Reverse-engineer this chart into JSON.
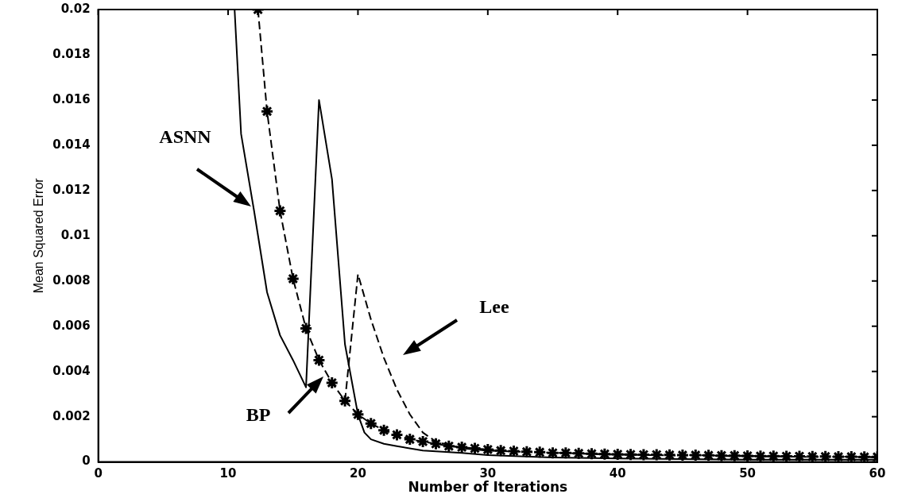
{
  "chart_data": {
    "type": "line",
    "xlabel": "Number of Iterations",
    "ylabel": "Mean Squared Error",
    "xlim": [
      0,
      60
    ],
    "xticks": [
      0,
      10,
      20,
      30,
      40,
      50,
      60
    ],
    "ylim": [
      0,
      0.02
    ],
    "yticks": [
      0,
      0.002,
      0.004,
      0.006,
      0.008,
      0.01,
      0.012,
      0.014,
      0.016,
      0.018,
      0.02
    ],
    "grid": false,
    "legend": false,
    "series": [
      {
        "color": "#000000",
        "line_style": "solid",
        "marker": "none",
        "x": [
          10.5,
          11,
          12,
          13,
          14,
          15,
          16,
          17,
          18,
          19,
          20,
          20.5,
          21,
          22,
          23,
          25,
          28,
          30,
          35,
          40,
          50,
          60
        ],
        "values": [
          0.02,
          0.0145,
          0.0111,
          0.0075,
          0.0056,
          0.0045,
          0.0033,
          0.016,
          0.0125,
          0.0052,
          0.0021,
          0.0013,
          0.001,
          0.0008,
          0.0007,
          0.0005,
          0.0004,
          0.0003,
          0.0002,
          0.00015,
          0.0001,
          0.0001
        ]
      },
      {
        "color": "#000000",
        "line_style": "dashed",
        "marker": "cross",
        "x": [
          12.3,
          13,
          14,
          15,
          16,
          17,
          18,
          19,
          20,
          21,
          22,
          23,
          24,
          25,
          26,
          27,
          28,
          29,
          30,
          31,
          32,
          33,
          34,
          35,
          36,
          37,
          38,
          39,
          40,
          41,
          42,
          43,
          44,
          45,
          46,
          47,
          48,
          49,
          50,
          51,
          52,
          53,
          54,
          55,
          56,
          57,
          58,
          59,
          60
        ],
        "values": [
          0.02,
          0.0155,
          0.0111,
          0.0081,
          0.0059,
          0.0045,
          0.0035,
          0.0027,
          0.0021,
          0.0017,
          0.0014,
          0.0012,
          0.001,
          0.0009,
          0.0008,
          0.0007,
          0.00065,
          0.0006,
          0.00055,
          0.0005,
          0.00048,
          0.00045,
          0.00043,
          0.0004,
          0.0004,
          0.00038,
          0.00036,
          0.00035,
          0.00034,
          0.00033,
          0.00032,
          0.00032,
          0.00031,
          0.0003,
          0.0003,
          0.00029,
          0.00028,
          0.00028,
          0.00027,
          0.00026,
          0.00026,
          0.00025,
          0.00025,
          0.00024,
          0.00024,
          0.00023,
          0.00023,
          0.00022,
          0.00022
        ]
      },
      {
        "color": "#000000",
        "line_style": "dashed",
        "marker": "none",
        "x": [
          19,
          20,
          21,
          22,
          23,
          24,
          25,
          26,
          28,
          30,
          35,
          40,
          50,
          60
        ],
        "values": [
          0.0027,
          0.0083,
          0.0063,
          0.0046,
          0.0032,
          0.0021,
          0.0013,
          0.0009,
          0.0006,
          0.0005,
          0.0004,
          0.00032,
          0.00025,
          0.0002
        ]
      }
    ],
    "annotations": [
      "ASNN",
      "BP",
      "Lee"
    ]
  }
}
